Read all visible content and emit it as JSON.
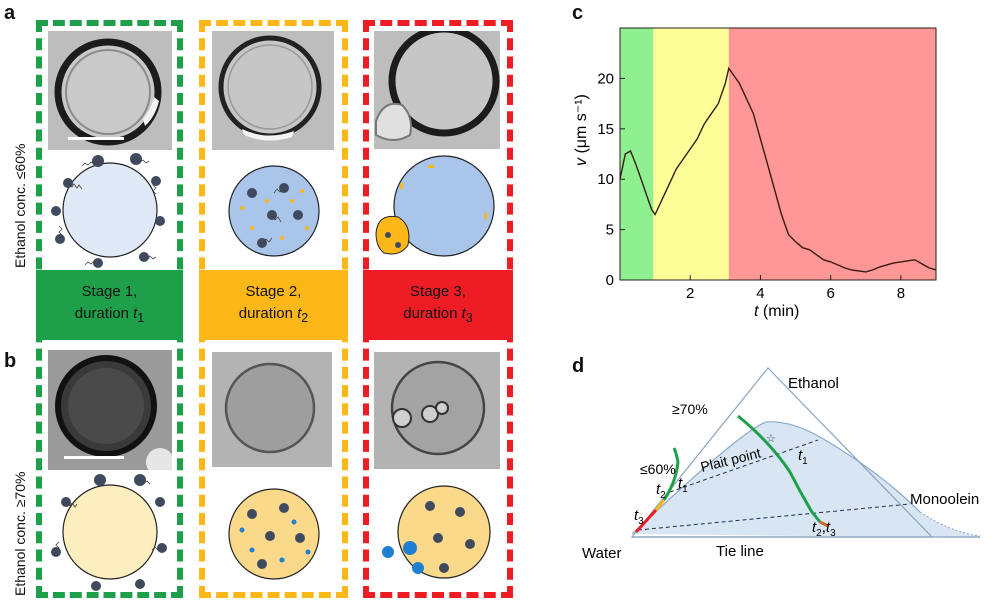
{
  "panels": {
    "a": "a",
    "b": "b",
    "c": "c",
    "d": "d"
  },
  "side_labels": {
    "top": "Ethanol conc. ≤60%",
    "bottom": "Ethanol conc. ≥70%"
  },
  "stages": [
    {
      "line1": "Stage 1,",
      "line2_pre": "duration ",
      "var": "t",
      "sub": "1",
      "color": "#1ea04b"
    },
    {
      "line1": "Stage 2,",
      "line2_pre": "duration ",
      "var": "t",
      "sub": "2",
      "color": "#fbb818"
    },
    {
      "line1": "Stage 3,",
      "line2_pre": "duration ",
      "var": "t",
      "sub": "3",
      "color": "#ee1c24"
    }
  ],
  "chart_data": {
    "type": "line",
    "ylabel_var": "v",
    "ylabel_unit": "(μm s⁻¹)",
    "xlabel_var": "t",
    "xlabel_unit": "(min)",
    "xlim": [
      0,
      9
    ],
    "ylim": [
      0,
      25
    ],
    "xticks": [
      2,
      4,
      6,
      8
    ],
    "yticks": [
      0,
      5,
      10,
      15,
      20
    ],
    "bands": [
      {
        "from": 0,
        "to": 0.95,
        "color": "#8ef08e"
      },
      {
        "from": 0.95,
        "to": 3.1,
        "color": "#ffff99"
      },
      {
        "from": 3.1,
        "to": 9,
        "color": "#ff9797"
      }
    ],
    "series": [
      {
        "x": [
          0,
          0.15,
          0.3,
          0.45,
          0.6,
          0.75,
          0.9,
          1.0,
          1.2,
          1.4,
          1.6,
          1.8,
          2.0,
          2.2,
          2.4,
          2.6,
          2.8,
          3.0,
          3.1,
          3.2,
          3.4,
          3.6,
          3.8,
          4.0,
          4.2,
          4.4,
          4.6,
          4.8,
          5.0,
          5.2,
          5.4,
          5.6,
          5.8,
          6.0,
          6.2,
          6.4,
          6.6,
          6.8,
          7.0,
          7.2,
          7.4,
          7.6,
          7.8,
          8.0,
          8.2,
          8.4,
          8.6,
          8.8,
          9.0
        ],
        "y": [
          10,
          12.5,
          12.8,
          11.5,
          10.0,
          8.5,
          7.0,
          6.5,
          8.0,
          9.5,
          11.0,
          12.0,
          13.0,
          14.0,
          15.5,
          16.5,
          17.5,
          19.5,
          21.0,
          20.5,
          19.5,
          18.0,
          16.5,
          14.0,
          11.5,
          9.0,
          6.5,
          4.5,
          3.8,
          3.2,
          3.0,
          2.5,
          2.0,
          1.8,
          1.5,
          1.2,
          1.0,
          0.9,
          0.8,
          1.0,
          1.3,
          1.5,
          1.7,
          1.8,
          1.9,
          2.0,
          1.6,
          1.2,
          1.0
        ]
      }
    ]
  },
  "ternary": {
    "vertex_top": "Ethanol",
    "vertex_left": "Water",
    "vertex_right": "Monoolein",
    "label_70": "≥70%",
    "label_60": "≤60%",
    "plait": "Plait point",
    "tie": "Tie line",
    "t1": "t",
    "t1_sub": "1",
    "t2": "t",
    "t2_sub": "2",
    "t3": "t",
    "t3_sub": "3",
    "t1b_sub": "1",
    "t23a": "t",
    "t23a_sub": "2",
    "t23b": "t",
    "t23b_sub": "3"
  }
}
